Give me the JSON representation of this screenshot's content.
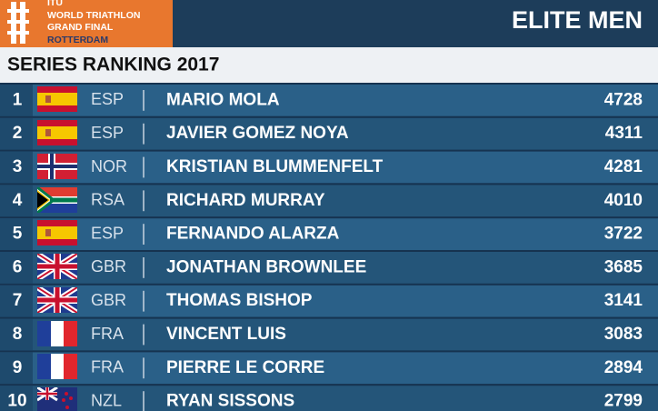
{
  "header": {
    "logo": [
      "ITU",
      "WORLD TRIATHLON",
      "GRAND FINAL",
      "ROTTERDAM"
    ],
    "category": "ELITE MEN",
    "title": "SERIES RANKING 2017"
  },
  "table": {
    "rows": [
      [
        "1",
        "ESP",
        "MARIO MOLA",
        "4728"
      ],
      [
        "2",
        "ESP",
        "JAVIER GOMEZ NOYA",
        "4311"
      ],
      [
        "3",
        "NOR",
        "KRISTIAN BLUMMENFELT",
        "4281"
      ],
      [
        "4",
        "RSA",
        "RICHARD MURRAY",
        "4010"
      ],
      [
        "5",
        "ESP",
        "FERNANDO ALARZA",
        "3722"
      ],
      [
        "6",
        "GBR",
        "JONATHAN BROWNLEE",
        "3685"
      ],
      [
        "7",
        "GBR",
        "THOMAS BISHOP",
        "3141"
      ],
      [
        "8",
        "FRA",
        "VINCENT LUIS",
        "3083"
      ],
      [
        "9",
        "FRA",
        "PIERRE LE CORRE",
        "2894"
      ],
      [
        "10",
        "NZL",
        "RYAN SISSONS",
        "2799"
      ]
    ]
  }
}
